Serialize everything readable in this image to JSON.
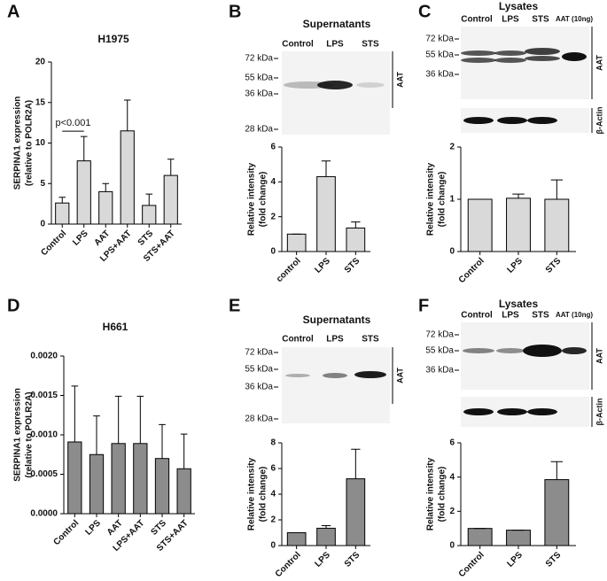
{
  "chart_data": [
    {
      "type": "bar",
      "panel": "A",
      "title": "H1975",
      "ylabel": [
        "SERPINA1 expression",
        "(relative to POLR2A)"
      ],
      "categories": [
        "Control",
        "LPS",
        "AAT",
        "LPS+AAT",
        "STS",
        "STS+AAT"
      ],
      "values": [
        2.6,
        7.8,
        4.0,
        11.5,
        2.3,
        6.0
      ],
      "errors": [
        0.7,
        3.0,
        1.0,
        3.8,
        1.4,
        2.0
      ],
      "ylim": [
        0,
        20
      ],
      "yticks": [
        0,
        5,
        10,
        15,
        20
      ],
      "color": "#d9d9d9",
      "annotation": "p<0.001"
    },
    {
      "type": "bar",
      "panel": "B",
      "ylabel": [
        "Relative intensity",
        "(fold change)"
      ],
      "categories": [
        "control",
        "LPS",
        "STS"
      ],
      "values": [
        1.0,
        4.3,
        1.35
      ],
      "errors": [
        0,
        0.9,
        0.35
      ],
      "ylim": [
        0,
        6
      ],
      "yticks": [
        0,
        2,
        4,
        6
      ],
      "color": "#d9d9d9"
    },
    {
      "type": "bar",
      "panel": "C",
      "ylabel": [
        "Relative intensity",
        "(fold change)"
      ],
      "categories": [
        "Control",
        "LPS",
        "STS"
      ],
      "values": [
        1.0,
        1.02,
        1.0
      ],
      "errors": [
        0,
        0.08,
        0.37
      ],
      "ylim": [
        0,
        2
      ],
      "yticks": [
        0,
        1,
        2
      ],
      "color": "#d9d9d9"
    },
    {
      "type": "bar",
      "panel": "D",
      "title": "H661",
      "ylabel": [
        "SERPINA1 expression",
        "(relative to POLR2A)"
      ],
      "categories": [
        "Control",
        "LPS",
        "AAT",
        "LPS+AAT",
        "STS",
        "STS+AAT"
      ],
      "values": [
        0.00091,
        0.00075,
        0.00089,
        0.00089,
        0.0007,
        0.00057
      ],
      "errors": [
        0.00071,
        0.00049,
        0.0006,
        0.0006,
        0.00043,
        0.00044
      ],
      "ylim": [
        0,
        0.002
      ],
      "yticks": [
        {
          "value": 0,
          "label": "0.0000"
        },
        {
          "value": 0.0005,
          "label": "0.0005"
        },
        {
          "value": 0.001,
          "label": "0.0010"
        },
        {
          "value": 0.0015,
          "label": "0.0015"
        },
        {
          "value": 0.002,
          "label": "0.0020"
        }
      ],
      "color": "#8c8c8c"
    },
    {
      "type": "bar",
      "panel": "E",
      "ylabel": [
        "Relative intensity",
        "(fold change)"
      ],
      "categories": [
        "Control",
        "LPS",
        "STS"
      ],
      "values": [
        1.0,
        1.35,
        5.2
      ],
      "errors": [
        0,
        0.2,
        2.3
      ],
      "ylim": [
        0,
        8
      ],
      "yticks": [
        0,
        2,
        4,
        6,
        8
      ],
      "color": "#8c8c8c"
    },
    {
      "type": "bar",
      "panel": "F",
      "ylabel": [
        "Relative intensity",
        "(fold change)"
      ],
      "categories": [
        "Control",
        "LPS",
        "STS"
      ],
      "values": [
        1.0,
        0.9,
        3.85
      ],
      "errors": [
        0,
        0,
        1.05
      ],
      "ylim": [
        0,
        6
      ],
      "yticks": [
        0,
        2,
        4,
        6
      ],
      "color": "#8c8c8c"
    }
  ],
  "blots": [
    {
      "title": "Supernatants",
      "lanes": [
        "Control",
        "LPS",
        "STS"
      ],
      "markers": [
        "72 kDa",
        "55 kDa",
        "36 kDa",
        "28 kDa"
      ],
      "side_labels": [
        "AAT"
      ]
    },
    {
      "title": "Lysates",
      "lanes": [
        "Control",
        "LPS",
        "STS",
        "AAT (10ng)"
      ],
      "markers": [
        "72 kDa",
        "55 kDa",
        "36 kDa"
      ],
      "side_labels": [
        "AAT",
        "β-Actin"
      ]
    },
    {
      "title": "Supernatants",
      "lanes": [
        "Control",
        "LPS",
        "STS"
      ],
      "markers": [
        "72 kDa",
        "55 kDa",
        "36 kDa",
        "28 kDa"
      ],
      "side_labels": [
        "AAT"
      ]
    },
    {
      "title": "Lysates",
      "lanes": [
        "Control",
        "LPS",
        "STS",
        "AAT (10ng)"
      ],
      "markers": [
        "72 kDa",
        "55 kDa",
        "36 kDa"
      ],
      "side_labels": [
        "AAT",
        "β-Actin"
      ]
    }
  ]
}
